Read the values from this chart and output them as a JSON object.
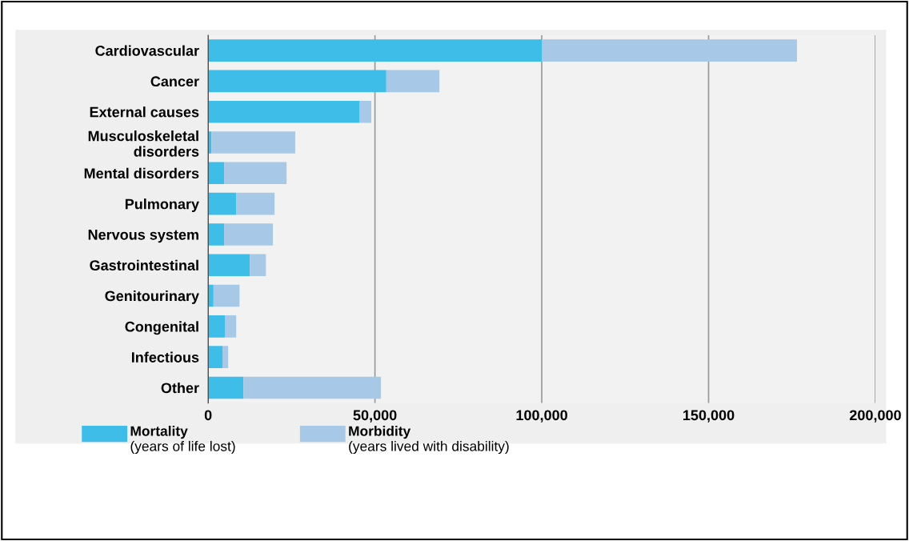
{
  "chart_data": {
    "type": "bar",
    "orientation": "horizontal",
    "stacked": true,
    "categories": [
      "Cardiovascular",
      "Cancer",
      "External causes",
      "Musculoskeletal\ndisorders",
      "Mental disorders",
      "Pulmonary",
      "Nervous system",
      "Gastrointestinal",
      "Genitourinary",
      "Congenital",
      "Infectious",
      "Other"
    ],
    "series": [
      {
        "name": "Mortality\n(years of life lost)",
        "color": "#3dbde8",
        "values": [
          100000,
          53400,
          45300,
          1000,
          4800,
          8400,
          4800,
          12500,
          1600,
          5000,
          4300,
          10600
        ]
      },
      {
        "name": "Morbidity\n(years lived with disability)",
        "color": "#a7c8e6",
        "values": [
          76500,
          15900,
          3600,
          25100,
          18700,
          11500,
          14600,
          4800,
          7800,
          3400,
          1700,
          41200
        ]
      }
    ],
    "xlim": [
      0,
      200000
    ],
    "xticks": [
      {
        "value": 0,
        "label": "0"
      },
      {
        "value": 50000,
        "label": "50,000"
      },
      {
        "value": 100000,
        "label": "100,000"
      },
      {
        "value": 150000,
        "label": "150,000"
      },
      {
        "value": 200000,
        "label": "200,000"
      }
    ],
    "grid": "x",
    "legend": "bottom"
  }
}
